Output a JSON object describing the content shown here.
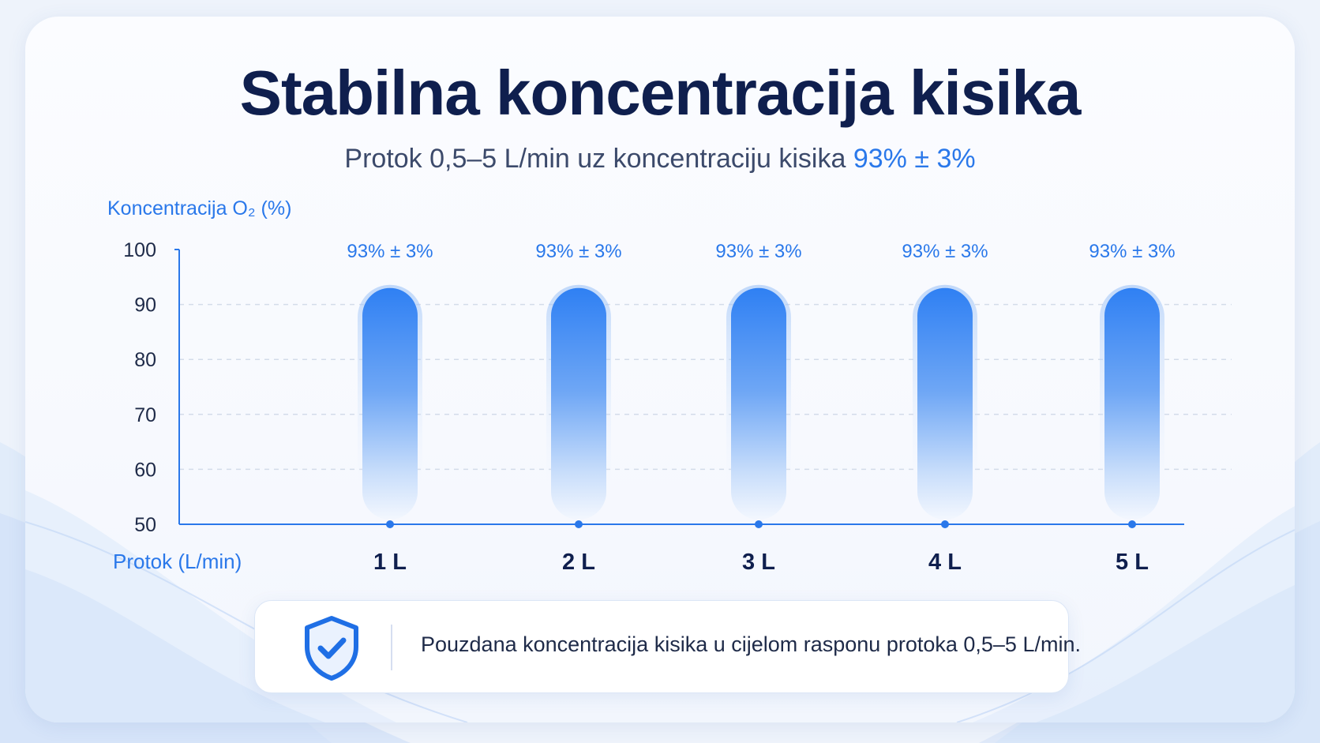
{
  "header": {
    "title": "Stabilna koncentracija kisika",
    "subtitle_main": "Protok 0,5–5 L/min uz koncentraciju kisika ",
    "subtitle_accent": "93% ± 3%"
  },
  "chart_data": {
    "type": "bar",
    "ylabel": "Koncentracija O₂ (%)",
    "xlabel": "Protok (L/min)",
    "categories": [
      "1 L",
      "2 L",
      "3 L",
      "4 L",
      "5 L"
    ],
    "values": [
      93,
      93,
      93,
      93,
      93
    ],
    "data_labels": [
      "93% ± 3%",
      "93% ± 3%",
      "93% ± 3%",
      "93% ± 3%",
      "93% ± 3%"
    ],
    "ylim": [
      50,
      100
    ],
    "yticks": [
      50,
      60,
      70,
      80,
      90,
      100
    ],
    "grid": true
  },
  "info": {
    "text": "Pouzdana koncentracija kisika u cijelom rasponu protoka 0,5–5 L/min.",
    "icon": "shield-check-icon"
  },
  "colors": {
    "accent": "#2a78ea",
    "title": "#0f1f4e",
    "bar_top": "#2f80f3",
    "axis": "#2a78ea"
  }
}
